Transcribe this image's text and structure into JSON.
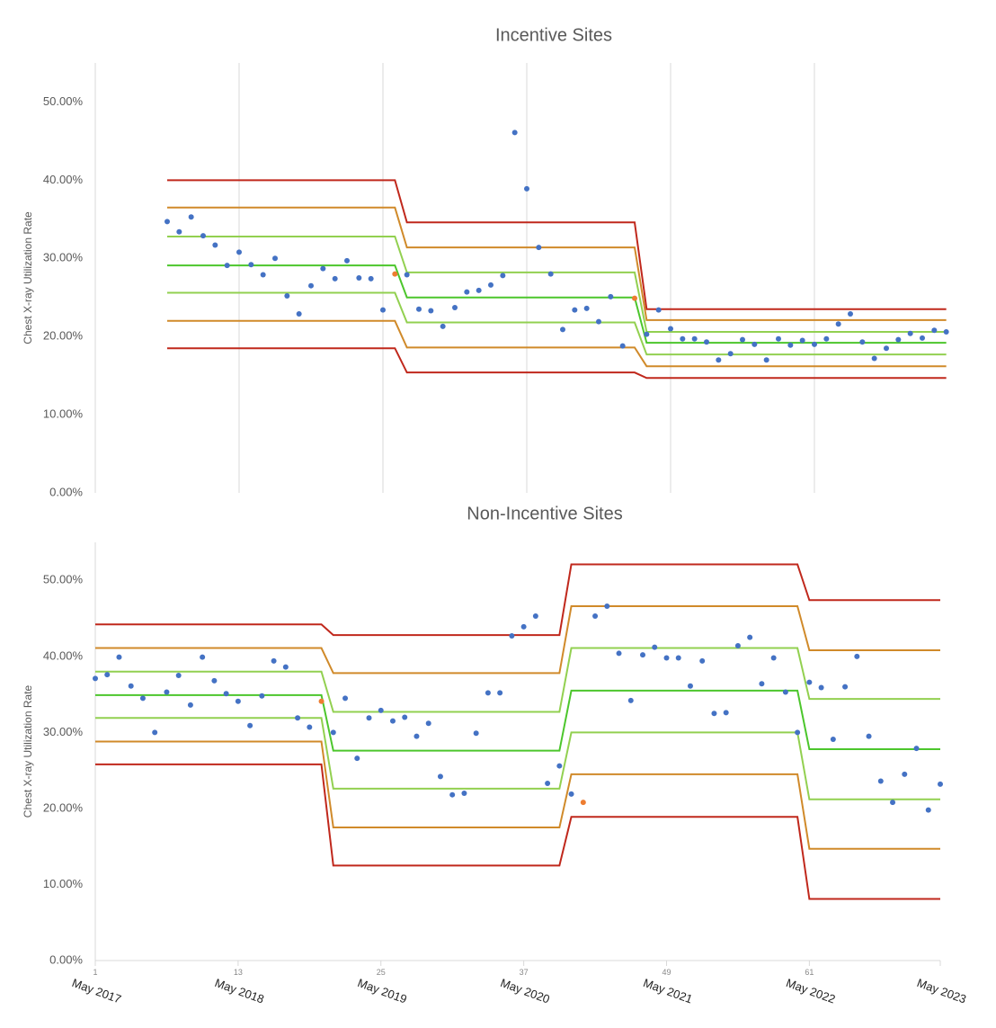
{
  "chart_data": [
    {
      "type": "scatter",
      "title": "Incentive Sites",
      "y_label": "Chest X-ray Utilization Rate",
      "xlim": [
        1,
        73
      ],
      "xgrid": [
        13,
        25,
        37,
        49,
        61
      ],
      "ylim": [
        0,
        55
      ],
      "yticks": [
        {
          "value": 0,
          "label": "0.00%"
        },
        {
          "value": 10,
          "label": "10.00%"
        },
        {
          "value": 20,
          "label": "20.00%"
        },
        {
          "value": 30,
          "label": "30.00%"
        },
        {
          "value": 40,
          "label": "40.00%"
        },
        {
          "value": 50,
          "label": "50.00%"
        }
      ],
      "points": {
        "color": "#4472c4",
        "highlight_color": "#ed7d31",
        "highlight_x": [
          26,
          46
        ],
        "x": [
          7,
          8,
          9,
          10,
          11,
          12,
          13,
          14,
          15,
          16,
          17,
          18,
          19,
          20,
          21,
          22,
          23,
          24,
          25,
          26,
          27,
          28,
          29,
          30,
          31,
          32,
          33,
          34,
          35,
          36,
          37,
          38,
          39,
          40,
          41,
          42,
          43,
          44,
          45,
          46,
          47,
          48,
          49,
          50,
          51,
          52,
          53,
          54,
          55,
          56,
          57,
          58,
          59,
          60,
          61,
          62,
          63,
          64,
          65,
          66,
          67,
          68,
          69,
          70,
          71,
          72
        ],
        "values": [
          34.7,
          33.4,
          35.3,
          32.9,
          31.7,
          29.1,
          30.8,
          29.2,
          27.9,
          30.0,
          25.2,
          22.9,
          26.5,
          28.7,
          27.4,
          29.7,
          27.5,
          27.4,
          23.4,
          28.0,
          27.9,
          23.5,
          23.3,
          21.3,
          23.7,
          25.7,
          25.9,
          26.6,
          27.8,
          46.1,
          38.9,
          31.4,
          28.0,
          20.9,
          23.4,
          23.6,
          21.9,
          25.1,
          18.8,
          24.9,
          20.3,
          23.4,
          21.0,
          19.7,
          19.7,
          19.3,
          17.0,
          17.8,
          19.6,
          19.0,
          17.0,
          19.7,
          18.9,
          19.5,
          19.0,
          19.7,
          21.6,
          22.9,
          19.3,
          17.2,
          18.5,
          19.6,
          20.4,
          19.8,
          20.8,
          20.6
        ]
      },
      "limits_x": [
        7,
        26,
        27,
        46,
        47,
        72
      ],
      "limits": [
        {
          "color": "#c0281c",
          "values": [
            40.0,
            40.0,
            34.6,
            34.6,
            23.5,
            23.5
          ]
        },
        {
          "color": "#d08a2a",
          "values": [
            36.5,
            36.5,
            31.4,
            31.4,
            22.1,
            22.1
          ]
        },
        {
          "color": "#92d050",
          "values": [
            32.8,
            32.8,
            28.2,
            28.2,
            20.6,
            20.6
          ]
        },
        {
          "color": "#4cc62c",
          "values": [
            29.1,
            29.1,
            25.0,
            25.0,
            19.2,
            19.2
          ]
        },
        {
          "color": "#92d050",
          "values": [
            25.6,
            25.6,
            21.8,
            21.8,
            17.7,
            17.7
          ]
        },
        {
          "color": "#d08a2a",
          "values": [
            22.0,
            22.0,
            18.6,
            18.6,
            16.2,
            16.2
          ]
        },
        {
          "color": "#c0281c",
          "values": [
            18.5,
            18.5,
            15.4,
            15.4,
            14.7,
            14.7
          ]
        }
      ]
    },
    {
      "type": "scatter",
      "title": "Non-Incentive Sites",
      "y_label": "Chest X-ray Utilization Rate",
      "xlim": [
        1,
        72
      ],
      "xtick_index": [
        1,
        13,
        25,
        37,
        49,
        61
      ],
      "xticks": [
        {
          "value": 1,
          "label": "May 2017"
        },
        {
          "value": 13,
          "label": "May 2018"
        },
        {
          "value": 25,
          "label": "May 2019"
        },
        {
          "value": 37,
          "label": "May 2020"
        },
        {
          "value": 49,
          "label": "May 2021"
        },
        {
          "value": 61,
          "label": "May 2022"
        },
        {
          "value": 72,
          "label": "May 2023"
        }
      ],
      "ylim": [
        0,
        55
      ],
      "yticks": [
        {
          "value": 0,
          "label": "0.00%"
        },
        {
          "value": 10,
          "label": "10.00%"
        },
        {
          "value": 20,
          "label": "20.00%"
        },
        {
          "value": 30,
          "label": "30.00%"
        },
        {
          "value": 40,
          "label": "40.00%"
        },
        {
          "value": 50,
          "label": "50.00%"
        }
      ],
      "points": {
        "color": "#4472c4",
        "highlight_color": "#ed7d31",
        "highlight_x": [
          20,
          42
        ],
        "x": [
          1,
          2,
          3,
          4,
          5,
          6,
          7,
          8,
          9,
          10,
          11,
          12,
          13,
          14,
          15,
          16,
          17,
          18,
          19,
          20,
          21,
          22,
          23,
          24,
          25,
          26,
          27,
          28,
          29,
          30,
          31,
          32,
          33,
          34,
          35,
          36,
          37,
          38,
          39,
          40,
          41,
          42,
          43,
          44,
          45,
          46,
          47,
          48,
          49,
          50,
          51,
          52,
          53,
          54,
          55,
          56,
          57,
          58,
          59,
          60,
          61,
          62,
          63,
          64,
          65,
          66,
          67,
          68,
          69,
          70,
          71,
          72
        ],
        "values": [
          37.1,
          37.6,
          39.9,
          36.1,
          34.5,
          30.0,
          35.3,
          37.5,
          33.6,
          39.9,
          36.8,
          35.1,
          34.1,
          30.9,
          34.8,
          39.4,
          38.6,
          31.9,
          30.7,
          34.1,
          30.0,
          34.5,
          26.6,
          31.9,
          32.9,
          31.5,
          32.0,
          29.5,
          31.2,
          24.2,
          21.8,
          22.0,
          29.9,
          35.2,
          35.2,
          42.7,
          43.9,
          45.3,
          23.3,
          25.6,
          21.9,
          20.8,
          45.3,
          46.6,
          40.4,
          34.2,
          40.2,
          41.2,
          39.8,
          39.8,
          36.1,
          39.4,
          32.5,
          32.6,
          41.4,
          42.5,
          36.4,
          39.8,
          35.3,
          30.0,
          36.6,
          35.9,
          29.1,
          36.0,
          40.0,
          29.5,
          23.6,
          20.8,
          24.5,
          27.9,
          19.8,
          23.2
        ]
      },
      "limits_x": [
        1,
        20,
        21,
        40,
        41,
        60,
        61,
        72
      ],
      "limits": [
        {
          "color": "#c0281c",
          "values": [
            44.2,
            44.2,
            42.8,
            42.8,
            52.1,
            52.1,
            47.4,
            47.4
          ]
        },
        {
          "color": "#d08a2a",
          "values": [
            41.1,
            41.1,
            37.8,
            37.8,
            46.6,
            46.6,
            40.8,
            40.8
          ]
        },
        {
          "color": "#92d050",
          "values": [
            38.0,
            38.0,
            32.7,
            32.7,
            41.1,
            41.1,
            34.4,
            34.4
          ]
        },
        {
          "color": "#4cc62c",
          "values": [
            34.9,
            34.9,
            27.6,
            27.6,
            35.5,
            35.5,
            27.8,
            27.8
          ]
        },
        {
          "color": "#92d050",
          "values": [
            31.9,
            31.9,
            22.6,
            22.6,
            30.0,
            30.0,
            21.2,
            21.2
          ]
        },
        {
          "color": "#d08a2a",
          "values": [
            28.8,
            28.8,
            17.5,
            17.5,
            24.5,
            24.5,
            14.7,
            14.7
          ]
        },
        {
          "color": "#c0281c",
          "values": [
            25.8,
            25.8,
            12.5,
            12.5,
            18.9,
            18.9,
            8.1,
            8.1
          ]
        }
      ]
    }
  ]
}
